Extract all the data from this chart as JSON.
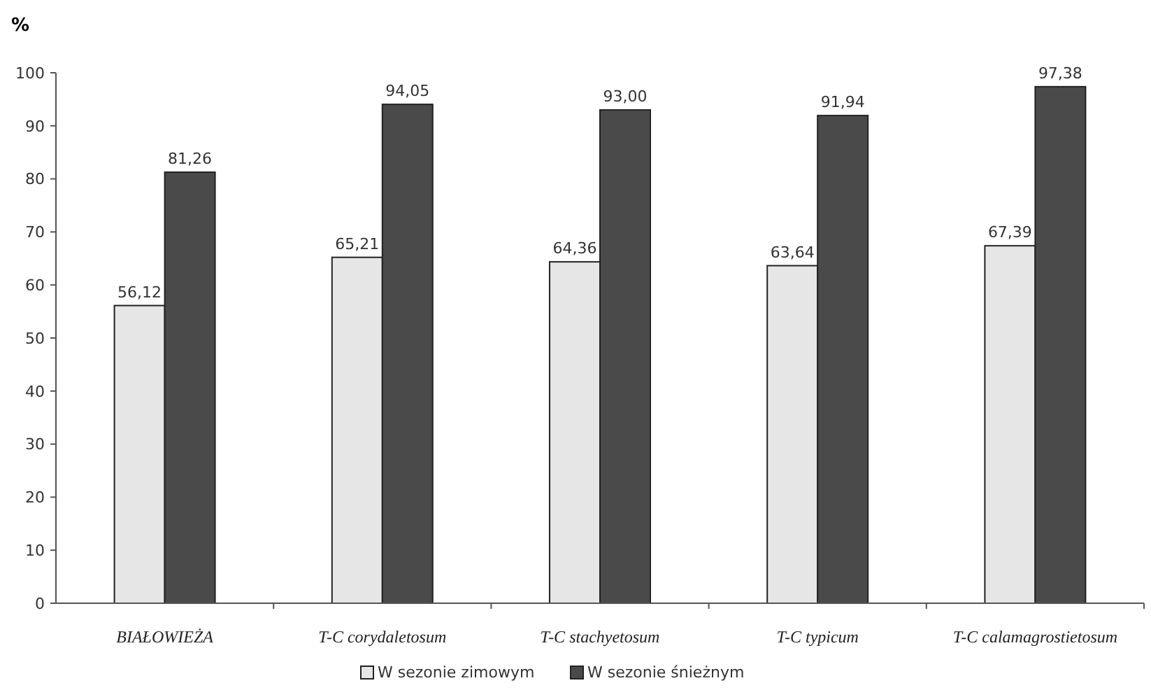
{
  "chart_data": {
    "type": "bar",
    "ylabel": "%",
    "categories": [
      "BIAŁOWIEŻA",
      "T-C corydaletosum",
      "T-C stachyetosum",
      "T-C typicum",
      "T-C calamagrostietosum"
    ],
    "series": [
      {
        "name": "W sezonie zimowym",
        "color": "#e6e6e6",
        "values": [
          56.12,
          65.21,
          64.36,
          63.64,
          67.39
        ],
        "value_labels": [
          "56,12",
          "65,21",
          "64,36",
          "63,64",
          "67,39"
        ]
      },
      {
        "name": "W sezonie śnieżnym",
        "color": "#4a4a4a",
        "values": [
          81.26,
          94.05,
          93.0,
          91.94,
          97.38
        ],
        "value_labels": [
          "81,26",
          "94,05",
          "93,00",
          "91,94",
          "97,38"
        ]
      }
    ],
    "ylim": [
      0,
      100
    ],
    "yticks": [
      0,
      10,
      20,
      30,
      40,
      50,
      60,
      70,
      80,
      90,
      100
    ],
    "grid": false,
    "legend": "bottom"
  }
}
